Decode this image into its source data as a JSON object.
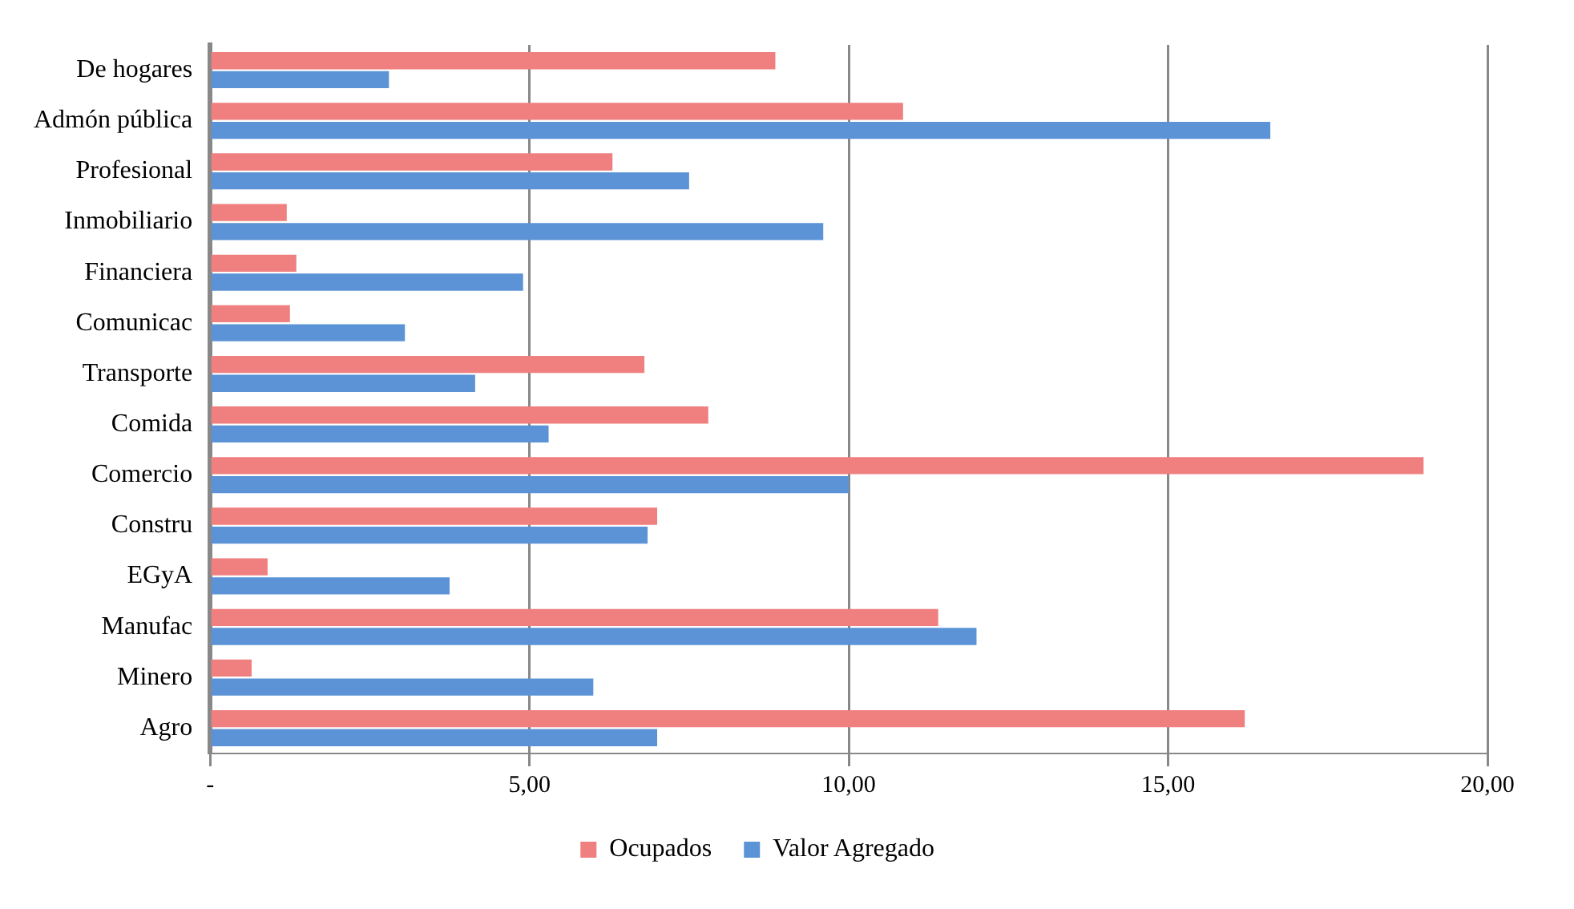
{
  "chart_data": {
    "type": "bar",
    "orientation": "horizontal",
    "categories": [
      "De hogares",
      "Admón pública",
      "Profesional",
      "Inmobiliario",
      "Financiera",
      "Comunicac",
      "Transporte",
      "Comida",
      "Comercio",
      "Constru",
      "EGyA",
      "Manufac",
      "Minero",
      "Agro"
    ],
    "series": [
      {
        "name": "Ocupados",
        "color": "#f07f7f",
        "values": [
          8.85,
          10.85,
          6.3,
          1.2,
          1.35,
          1.25,
          6.8,
          7.8,
          19.0,
          7.0,
          0.9,
          11.4,
          0.65,
          16.2
        ]
      },
      {
        "name": "Valor Agregado",
        "color": "#5b93d6",
        "values": [
          2.8,
          16.6,
          7.5,
          9.6,
          4.9,
          3.05,
          4.15,
          5.3,
          10.0,
          6.85,
          3.75,
          12.0,
          6.0,
          7.0
        ]
      }
    ],
    "xlim": [
      0,
      20
    ],
    "xticks": [
      {
        "value": 0,
        "label": "-"
      },
      {
        "value": 5,
        "label": "5,00"
      },
      {
        "value": 10,
        "label": "10,00"
      },
      {
        "value": 15,
        "label": "15,00"
      },
      {
        "value": 20,
        "label": "20,00"
      }
    ],
    "grid": "x",
    "legend": "bottom"
  }
}
